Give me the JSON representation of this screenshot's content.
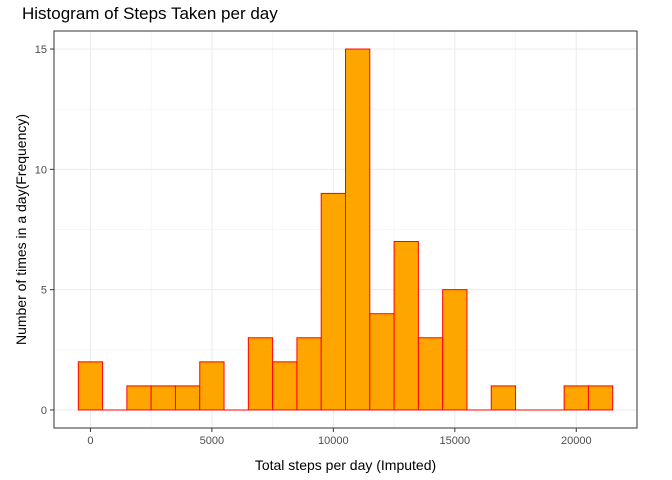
{
  "chart_data": {
    "type": "bar",
    "title": "Histogram of Steps Taken per day",
    "xlabel": "Total steps per day (Imputed)",
    "ylabel": "Number of times in a day(Frequency)",
    "bin_width": 1000,
    "bins": [
      {
        "x": 0,
        "count": 2
      },
      {
        "x": 1000,
        "count": 0
      },
      {
        "x": 2000,
        "count": 1
      },
      {
        "x": 3000,
        "count": 1
      },
      {
        "x": 4000,
        "count": 1
      },
      {
        "x": 5000,
        "count": 2
      },
      {
        "x": 6000,
        "count": 0
      },
      {
        "x": 7000,
        "count": 3
      },
      {
        "x": 8000,
        "count": 2
      },
      {
        "x": 9000,
        "count": 3
      },
      {
        "x": 10000,
        "count": 9
      },
      {
        "x": 11000,
        "count": 15
      },
      {
        "x": 12000,
        "count": 4
      },
      {
        "x": 13000,
        "count": 7
      },
      {
        "x": 14000,
        "count": 3
      },
      {
        "x": 15000,
        "count": 5
      },
      {
        "x": 16000,
        "count": 0
      },
      {
        "x": 17000,
        "count": 1
      },
      {
        "x": 18000,
        "count": 0
      },
      {
        "x": 19000,
        "count": 0
      },
      {
        "x": 20000,
        "count": 1
      },
      {
        "x": 21000,
        "count": 1
      }
    ],
    "xlim": [
      -1500,
      22500
    ],
    "ylim": [
      -0.75,
      15.75
    ],
    "x_ticks": [
      0,
      5000,
      10000,
      15000,
      20000
    ],
    "x_tick_labels": [
      "0",
      "5000",
      "10000",
      "15000",
      "20000"
    ],
    "y_ticks": [
      0,
      5,
      10,
      15
    ],
    "y_tick_labels": [
      "0",
      "5",
      "10",
      "15"
    ],
    "fill_color": "#FFA500",
    "border_color": "#FF0000",
    "grid": true
  }
}
